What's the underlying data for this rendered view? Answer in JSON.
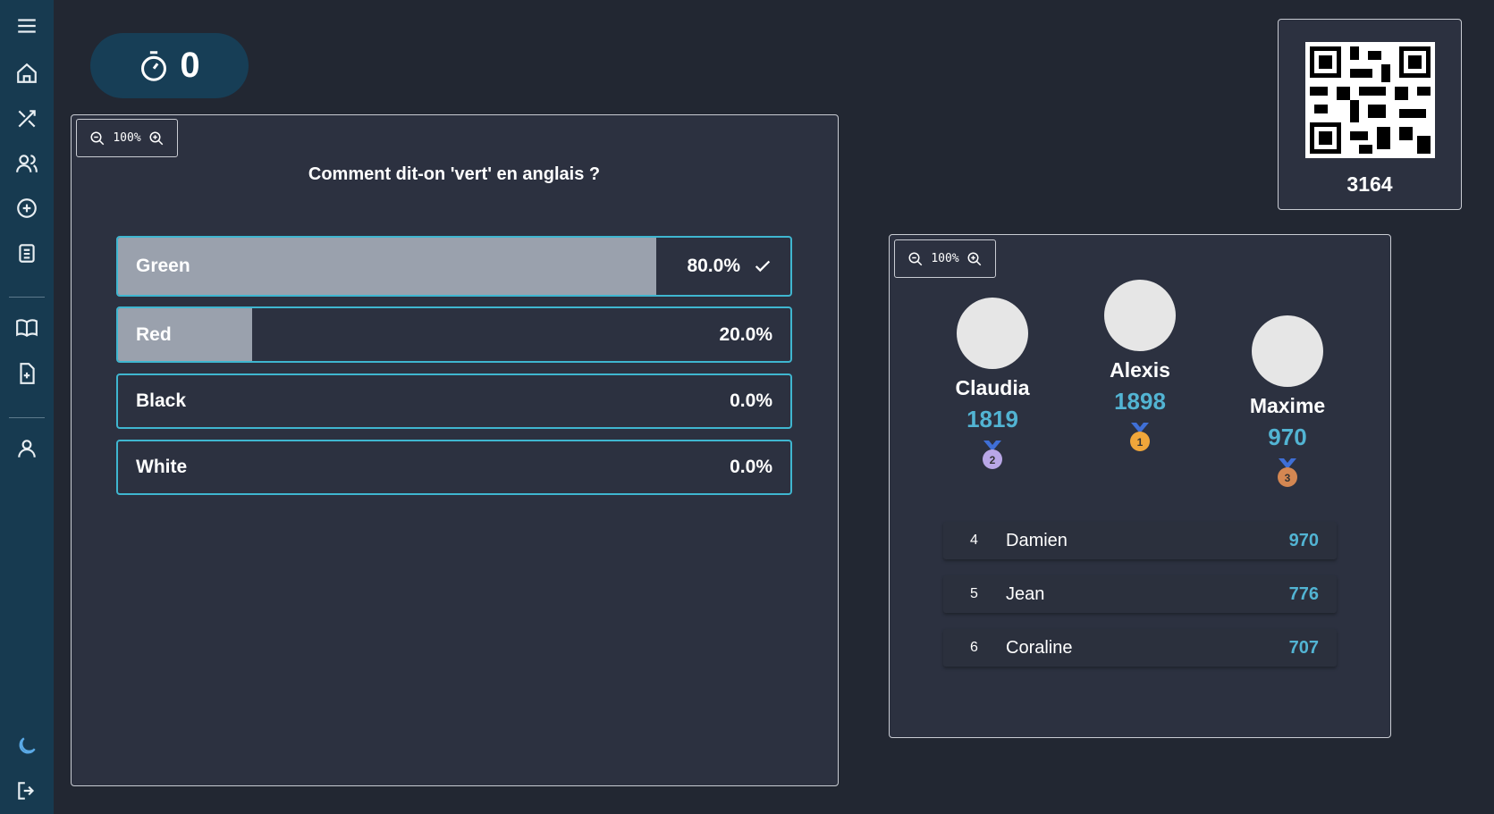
{
  "timer": 0,
  "question_panel": {
    "zoom": "100%",
    "question": "Comment dit-on 'vert' en anglais ?",
    "answers": [
      {
        "label": "Green",
        "value": 80,
        "value_label": "80.0%",
        "correct": true
      },
      {
        "label": "Red",
        "value": 20,
        "value_label": "20.0%",
        "correct": false
      },
      {
        "label": "Black",
        "value": 0,
        "value_label": "0.0%",
        "correct": false
      },
      {
        "label": "White",
        "value": 0,
        "value_label": "0.0%",
        "correct": false
      }
    ]
  },
  "room": {
    "code": 3164
  },
  "leaderboard": {
    "zoom": "100%",
    "podium": [
      {
        "name": "Claudia",
        "score": 1819,
        "rank": 2
      },
      {
        "name": "Alexis",
        "score": 1898,
        "rank": 1
      },
      {
        "name": "Maxime",
        "score": 970,
        "rank": 3
      }
    ],
    "rows": [
      {
        "rank": 4,
        "name": "Damien",
        "score": 970
      },
      {
        "rank": 5,
        "name": "Jean",
        "score": 776
      },
      {
        "rank": 6,
        "name": "Coraline",
        "score": 707
      }
    ]
  }
}
